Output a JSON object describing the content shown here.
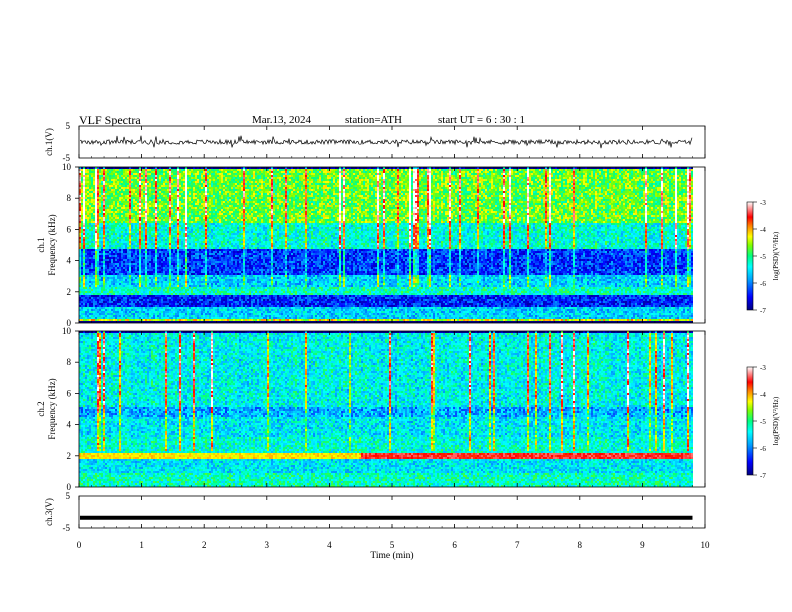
{
  "header": {
    "title": "VLF  Spectra",
    "date": "Mar.13, 2024",
    "station": "station=ATH",
    "start": "start  UT  =   6  : 30 : 1"
  },
  "chart_data": [
    {
      "type": "line",
      "name": "ch1-waveform",
      "ylabel": "ch.1(V)",
      "ylim": [
        -5,
        5
      ],
      "yticks": [
        "5",
        "-5"
      ],
      "xlim": [
        0,
        10
      ],
      "data_extent_min": 9.8,
      "amplitude_description": "noisy trace centered near 0 V with spikes to about ±2 V"
    },
    {
      "type": "heatmap",
      "name": "ch1-spectrogram",
      "ylabel": "ch.1\nFrequency (kHz)",
      "ylim": [
        0,
        10
      ],
      "yticks": [
        "0",
        "2",
        "4",
        "6",
        "8",
        "10"
      ],
      "xlim": [
        0,
        10
      ],
      "colorbar": {
        "label": "log(PSD)(V²/Hz)",
        "ticks": [
          "-3",
          "-4",
          "-5",
          "-6",
          "-7"
        ],
        "range": [
          -7,
          -3
        ]
      },
      "bands_khz": [
        {
          "from": 0.0,
          "to": 0.35,
          "level": -7
        },
        {
          "from": 0.35,
          "to": 1.1,
          "level": -5.6
        },
        {
          "from": 1.1,
          "to": 1.8,
          "level": -6.4
        },
        {
          "from": 1.8,
          "to": 2.4,
          "level": -5.2
        },
        {
          "from": 2.4,
          "to": 3.2,
          "level": -5.6
        },
        {
          "from": 3.2,
          "to": 4.8,
          "level": -6.3
        },
        {
          "from": 4.8,
          "to": 6.5,
          "level": -5.3
        },
        {
          "from": 6.5,
          "to": 10.0,
          "level": -4.7
        }
      ]
    },
    {
      "type": "heatmap",
      "name": "ch2-spectrogram",
      "ylabel": "ch.2\nFrequency (kHz)",
      "ylim": [
        0,
        10
      ],
      "yticks": [
        "0",
        "2",
        "4",
        "6",
        "8",
        "10"
      ],
      "xlim": [
        0,
        10
      ],
      "colorbar": {
        "label": "log(PSD)(V²/Hz)",
        "ticks": [
          "-3",
          "-4",
          "-5",
          "-6",
          "-7"
        ],
        "range": [
          -7,
          -3
        ]
      },
      "bands_khz": [
        {
          "from": 0.0,
          "to": 1.0,
          "level": -5.2
        },
        {
          "from": 1.0,
          "to": 1.9,
          "level": -5.5
        },
        {
          "from": 1.9,
          "to": 2.3,
          "level": -3.9
        },
        {
          "from": 2.3,
          "to": 3.3,
          "level": -5.3
        },
        {
          "from": 3.3,
          "to": 4.5,
          "level": -5.5
        },
        {
          "from": 4.5,
          "to": 5.2,
          "level": -5.8
        },
        {
          "from": 5.2,
          "to": 10.0,
          "level": -5.4
        }
      ]
    },
    {
      "type": "line",
      "name": "ch3-waveform",
      "ylabel": "ch.3(V)",
      "ylim": [
        -5,
        5
      ],
      "yticks": [
        "5",
        "-5"
      ],
      "xlim": [
        0,
        10
      ],
      "data_extent_min": 9.8,
      "amplitude_description": "flat thick trace at about -1.8 V"
    }
  ],
  "xaxis": {
    "label": "Time  (min)",
    "ticks": [
      "0",
      "1",
      "2",
      "3",
      "4",
      "5",
      "6",
      "7",
      "8",
      "9",
      "10"
    ]
  },
  "colors": {
    "colormap": [
      "#000080",
      "#0000ff",
      "#00a0ff",
      "#00ffff",
      "#00ff80",
      "#80ff00",
      "#ffff00",
      "#ff8000",
      "#ff0000",
      "#ffffff"
    ]
  }
}
